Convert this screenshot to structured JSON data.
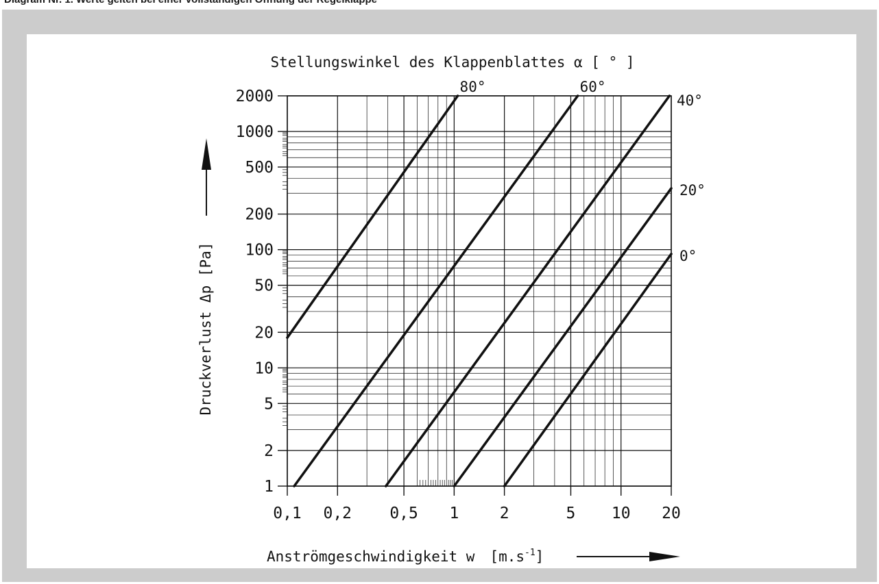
{
  "caption": "Diagram Nr. 1. Werte gelten bei einer vollständigen Öffnung der Regelklappe",
  "colors": {
    "frame": "#cccccc",
    "panel": "#ffffff",
    "ink": "#111111"
  },
  "chart_data": {
    "type": "line",
    "title": "Stellungswinkel des Klappenblattes α [ ° ]",
    "xlabel": "Anströmgeschwindigkeit w [m.s-1]",
    "xlabel_main": "Anströmgeschwindigkeit w",
    "xlabel_unit": "[m.s",
    "xlabel_exp": "-1",
    "xlabel_close": "]",
    "ylabel": "Druckverlust Δp [Pa]",
    "x_scale": "log",
    "y_scale": "log",
    "xlim": [
      0.1,
      20
    ],
    "ylim": [
      1,
      2000
    ],
    "x_ticks": [
      0.1,
      0.2,
      0.5,
      1,
      2,
      5,
      10,
      20
    ],
    "x_tick_labels": [
      "0,1",
      "0,2",
      "0,5",
      "1",
      "2",
      "5",
      "10",
      "20"
    ],
    "y_ticks": [
      1,
      2,
      5,
      10,
      20,
      50,
      100,
      200,
      500,
      1000,
      2000
    ],
    "y_tick_labels": [
      "1",
      "2",
      "5",
      "10",
      "20",
      "50",
      "100",
      "200",
      "500",
      "1000",
      "2000"
    ],
    "grid": true,
    "series": [
      {
        "name": "80°",
        "x": [
          0.1,
          1.05
        ],
        "y": [
          18,
          2000
        ]
      },
      {
        "name": "60°",
        "x": [
          0.11,
          5.5
        ],
        "y": [
          1,
          2000
        ]
      },
      {
        "name": "40°",
        "x": [
          0.39,
          19.5
        ],
        "y": [
          1,
          2000
        ]
      },
      {
        "name": "20°",
        "x": [
          1.0,
          20.0
        ],
        "y": [
          1,
          330
        ]
      },
      {
        "name": "0°",
        "x": [
          2.0,
          20.0
        ],
        "y": [
          1,
          92
        ]
      }
    ]
  }
}
